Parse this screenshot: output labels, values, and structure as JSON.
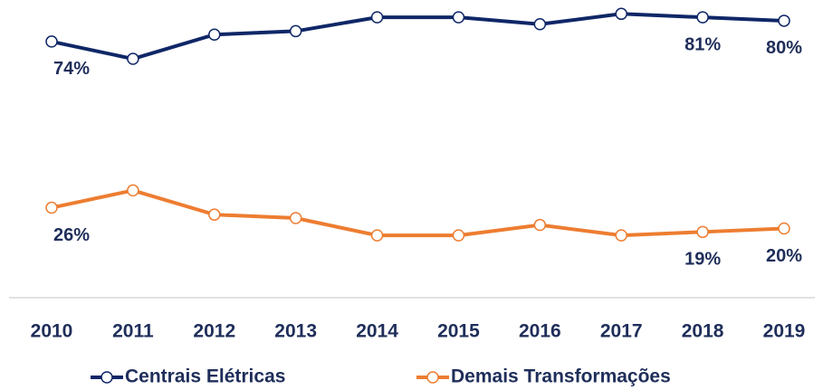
{
  "chart_data": {
    "type": "line",
    "categories": [
      "2010",
      "2011",
      "2012",
      "2013",
      "2014",
      "2015",
      "2016",
      "2017",
      "2018",
      "2019"
    ],
    "series": [
      {
        "name": "Centrais Elétricas",
        "color": "#0f2767",
        "values": [
          74,
          69,
          76,
          77,
          81,
          81,
          79,
          82,
          81,
          80
        ],
        "value_labels": [
          "74%",
          null,
          null,
          null,
          null,
          null,
          null,
          null,
          "81%",
          "80%"
        ]
      },
      {
        "name": "Demais Transformações",
        "color": "#ed7d31",
        "values": [
          26,
          31,
          24,
          23,
          18,
          18,
          21,
          18,
          19,
          20
        ],
        "value_labels": [
          "26%",
          null,
          null,
          null,
          null,
          null,
          null,
          null,
          "19%",
          "20%"
        ]
      }
    ],
    "ylim": [
      0,
      86
    ]
  }
}
